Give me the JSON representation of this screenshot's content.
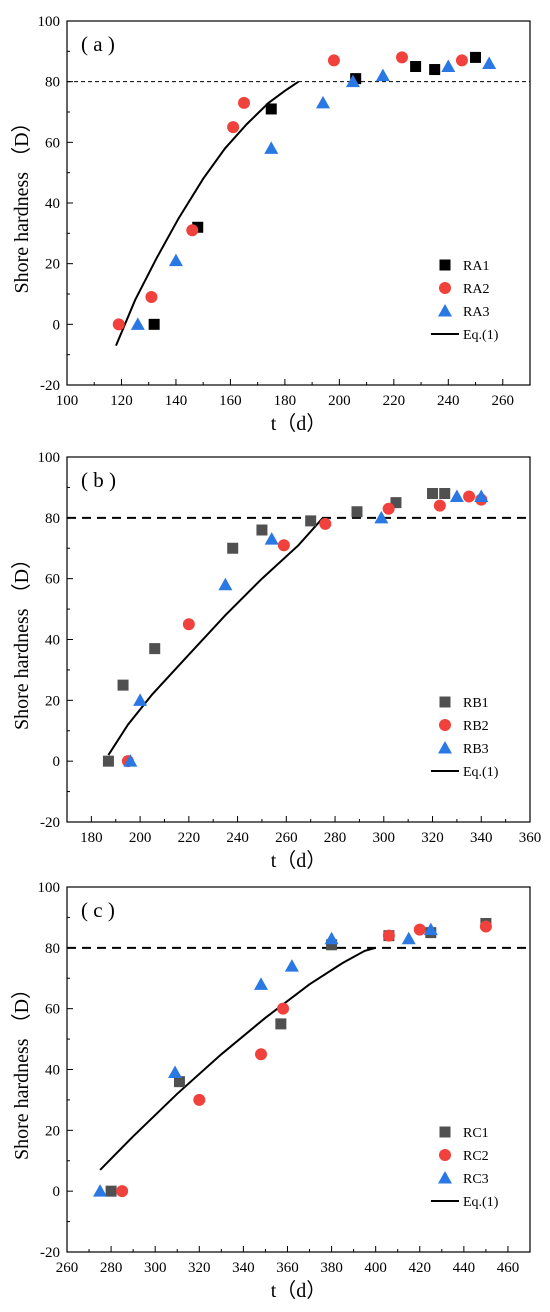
{
  "chart_data": [
    {
      "type": "scatter",
      "panel_label": "( a )",
      "xlabel": "t（d）",
      "ylabel": "Shore hardness （D）",
      "xlim": [
        100,
        270
      ],
      "ylim": [
        -20,
        100
      ],
      "xticks": [
        100,
        120,
        140,
        160,
        180,
        200,
        220,
        240,
        260
      ],
      "yticks": [
        -20,
        0,
        20,
        40,
        60,
        80,
        100
      ],
      "reference_line": {
        "y": 80,
        "style": "dashed-thin"
      },
      "legend_position": "bottom-right",
      "series": [
        {
          "name": "RA1",
          "marker": "square",
          "color": "#000000",
          "x": [
            132,
            148,
            175,
            206,
            228,
            235,
            250
          ],
          "y": [
            0,
            32,
            71,
            81,
            85,
            84,
            88
          ]
        },
        {
          "name": "RA2",
          "marker": "circle",
          "color": "#f0413c",
          "x": [
            119,
            131,
            146,
            161,
            165,
            198,
            223,
            245
          ],
          "y": [
            0,
            9,
            31,
            65,
            73,
            87,
            88,
            87
          ]
        },
        {
          "name": "RA3",
          "marker": "triangle",
          "color": "#2a78e4",
          "x": [
            126,
            140,
            175,
            194,
            205,
            216,
            240,
            255
          ],
          "y": [
            0,
            21,
            58,
            73,
            80,
            82,
            85,
            86
          ]
        }
      ],
      "fit": {
        "name": "Eq.(1)",
        "color": "#000000",
        "x": [
          118,
          125,
          133,
          141,
          150,
          158,
          166,
          174,
          180,
          185
        ],
        "y": [
          -7,
          8,
          22,
          35,
          48,
          58,
          66,
          73,
          77,
          80
        ]
      }
    },
    {
      "type": "scatter",
      "panel_label": "( b )",
      "xlabel": "t（d）",
      "ylabel": "Shore hardness （D）",
      "xlim": [
        170,
        360
      ],
      "ylim": [
        -20,
        100
      ],
      "xticks": [
        180,
        200,
        220,
        240,
        260,
        280,
        300,
        320,
        340,
        360
      ],
      "yticks": [
        -20,
        0,
        20,
        40,
        60,
        80,
        100
      ],
      "reference_line": {
        "y": 80,
        "style": "dashed-bold"
      },
      "legend_position": "bottom-right",
      "series": [
        {
          "name": "RB1",
          "marker": "square",
          "color": "#505050",
          "x": [
            187,
            193,
            206,
            238,
            250,
            270,
            289,
            305,
            320,
            325
          ],
          "y": [
            0,
            25,
            37,
            70,
            76,
            79,
            82,
            85,
            88,
            88
          ]
        },
        {
          "name": "RB2",
          "marker": "circle",
          "color": "#f0413c",
          "x": [
            195,
            220,
            259,
            276,
            302,
            323,
            335,
            340
          ],
          "y": [
            0,
            45,
            71,
            78,
            83,
            84,
            87,
            86
          ]
        },
        {
          "name": "RB3",
          "marker": "triangle",
          "color": "#2a78e4",
          "x": [
            196,
            200,
            235,
            254,
            299,
            330,
            340
          ],
          "y": [
            0,
            20,
            58,
            73,
            80,
            87,
            87
          ]
        }
      ],
      "fit": {
        "name": "Eq.(1)",
        "color": "#000000",
        "x": [
          187,
          195,
          205,
          220,
          235,
          250,
          265,
          275
        ],
        "y": [
          2,
          12,
          22,
          35,
          48,
          60,
          71,
          80
        ]
      }
    },
    {
      "type": "scatter",
      "panel_label": "( c )",
      "xlabel": "t（d）",
      "ylabel": "Shore hardness （D）",
      "xlim": [
        260,
        470
      ],
      "ylim": [
        -20,
        100
      ],
      "xticks": [
        260,
        280,
        300,
        320,
        340,
        360,
        380,
        400,
        420,
        440,
        460
      ],
      "yticks": [
        -20,
        0,
        20,
        40,
        60,
        80,
        100
      ],
      "reference_line": {
        "y": 80,
        "style": "dashed-bold"
      },
      "legend_position": "bottom-right",
      "series": [
        {
          "name": "RC1",
          "marker": "square",
          "color": "#505050",
          "x": [
            280,
            311,
            357,
            380,
            406,
            425,
            450
          ],
          "y": [
            0,
            36,
            55,
            81,
            84,
            85,
            88
          ]
        },
        {
          "name": "RC2",
          "marker": "circle",
          "color": "#f0413c",
          "x": [
            285,
            320,
            348,
            358,
            406,
            420,
            450
          ],
          "y": [
            0,
            30,
            45,
            60,
            84,
            86,
            87
          ]
        },
        {
          "name": "RC3",
          "marker": "triangle",
          "color": "#2a78e4",
          "x": [
            275,
            309,
            348,
            362,
            380,
            415,
            425
          ],
          "y": [
            0,
            39,
            68,
            74,
            83,
            83,
            86
          ]
        }
      ],
      "fit": {
        "name": "Eq.(1)",
        "color": "#000000",
        "x": [
          275,
          290,
          310,
          330,
          350,
          370,
          385,
          395,
          400
        ],
        "y": [
          7,
          18,
          32,
          45,
          57,
          68,
          75,
          79,
          80
        ]
      }
    }
  ]
}
